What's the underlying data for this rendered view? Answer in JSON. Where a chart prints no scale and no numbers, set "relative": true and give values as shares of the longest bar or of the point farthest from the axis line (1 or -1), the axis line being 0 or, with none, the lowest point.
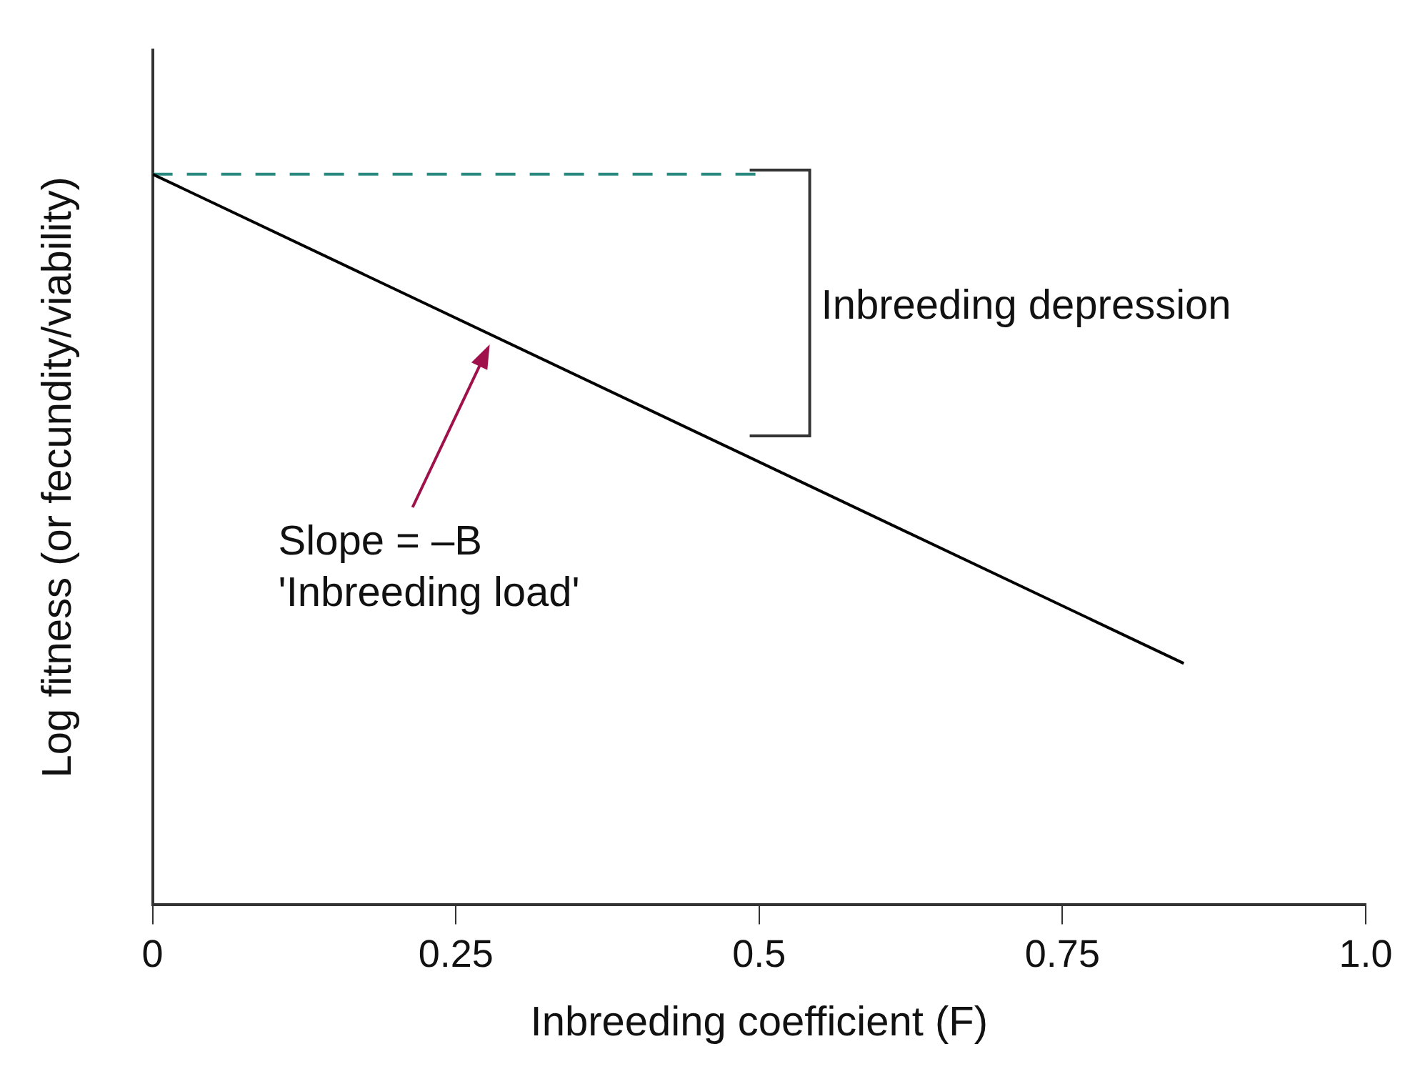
{
  "chart_data": {
    "type": "line",
    "relative": true,
    "xlabel": "Inbreeding coefficient (F)",
    "ylabel": "Log fitness (or fecundity/viability)",
    "xlim": [
      0,
      1
    ],
    "xticks": [
      0,
      0.25,
      0.5,
      {
        "value": 1,
        "label": "1.0"
      },
      0.75
    ],
    "series": [
      {
        "color": "#000000",
        "x": [
          0,
          0.85
        ],
        "values": [
          1,
          0.33
        ],
        "line_style": "solid"
      },
      {
        "color": "#2a8a80",
        "x": [
          0,
          0.5
        ],
        "values": [
          1,
          1
        ],
        "line_style": "dashed"
      }
    ],
    "annotations": [
      "Inbreeding depression",
      "Slope = –B\n'Inbreeding load'"
    ],
    "grid": false,
    "legend": false,
    "marker": "none"
  }
}
